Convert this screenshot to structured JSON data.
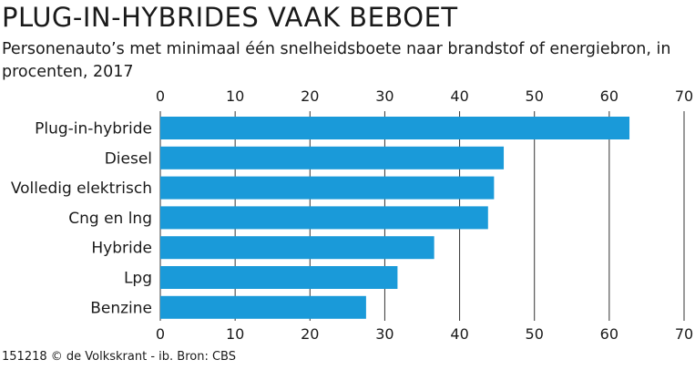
{
  "title": "PLUG-IN-HYBRIDES VAAK BEBOET",
  "subtitle": "Personenauto’s met minimaal één snelheidsboete naar brandstof of energiebron, in procenten, 2017",
  "footer": "151218 © de Volkskrant - ib. Bron: CBS",
  "colors": {
    "bar": "#1a9ad9",
    "grid": "#333333",
    "text": "#1a1a1a"
  },
  "chart_data": {
    "type": "bar",
    "orientation": "horizontal",
    "categories": [
      "Plug-in-hybride",
      "Diesel",
      "Volledig elektrisch",
      "Cng en lng",
      "Hybride",
      "Lpg",
      "Benzine"
    ],
    "values": [
      62.7,
      45.9,
      44.6,
      43.8,
      36.6,
      31.7,
      27.5
    ],
    "xlim": [
      0,
      70
    ],
    "xticks": [
      0,
      10,
      20,
      30,
      40,
      50,
      60,
      70
    ],
    "grid": true,
    "axis_labels_top_and_bottom": true
  }
}
